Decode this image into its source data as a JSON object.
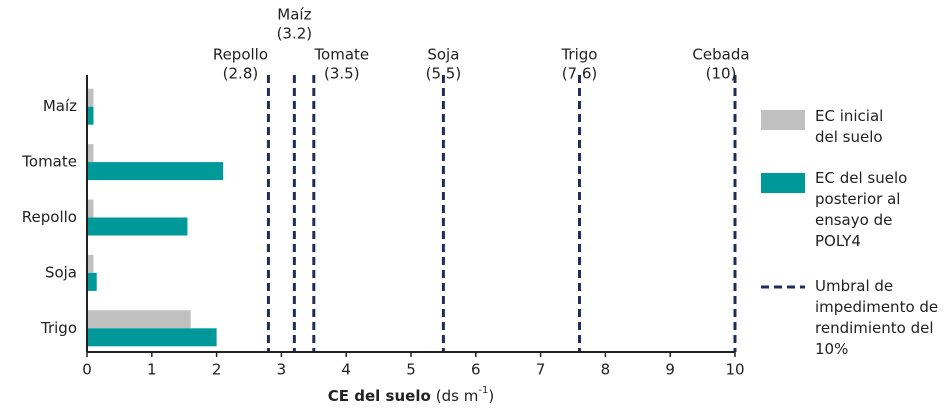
{
  "chart_data": {
    "type": "bar",
    "orientation": "horizontal",
    "categories": [
      "Maíz",
      "Tomate",
      "Repollo",
      "Soja",
      "Trigo"
    ],
    "series": [
      {
        "name": "EC inicial del suelo",
        "color": "#c0c0c0",
        "values": [
          0.1,
          0.1,
          0.1,
          0.1,
          1.6
        ]
      },
      {
        "name": "EC del suelo posterior al ensayo de POLY4",
        "color": "#00999a",
        "values": [
          0.1,
          2.1,
          1.55,
          0.15,
          2.0
        ]
      }
    ],
    "thresholds": {
      "name": "Umbral de impedimento de rendimiento del 10%",
      "color": "#1f2d5a",
      "labels": [
        "Repollo",
        "Maíz",
        "Tomate",
        "Soja",
        "Trigo",
        "Cebada"
      ],
      "values": [
        2.8,
        3.2,
        3.5,
        5.5,
        7.6,
        10
      ],
      "value_labels": [
        "(2.8)",
        "(3.2)",
        "(3.5)",
        "(5.5)",
        "(7.6)",
        "(10)"
      ]
    },
    "x_label": [
      "CE del suelo",
      "(ds m",
      "-1",
      ")"
    ],
    "xlim": [
      0,
      10
    ],
    "xticks": [
      0,
      1,
      2,
      3,
      4,
      5,
      6,
      7,
      8,
      9,
      10
    ]
  }
}
